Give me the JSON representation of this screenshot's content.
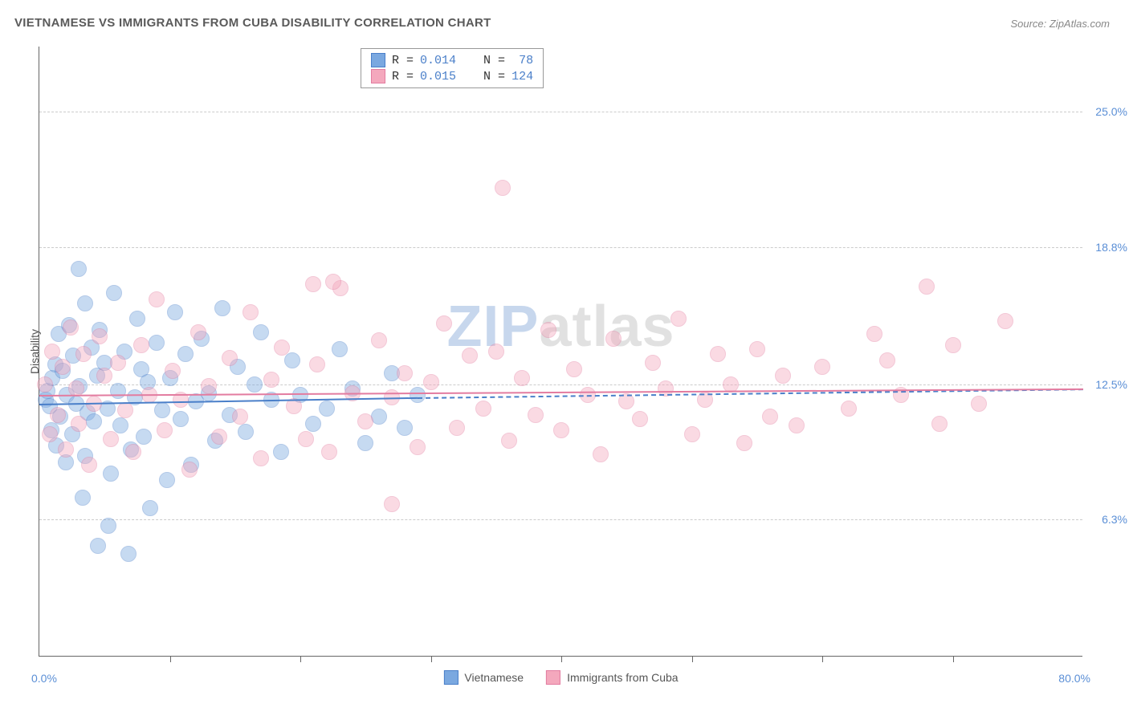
{
  "title": "VIETNAMESE VS IMMIGRANTS FROM CUBA DISABILITY CORRELATION CHART",
  "source": "Source: ZipAtlas.com",
  "watermark": {
    "part1": "ZIP",
    "part2": "atlas"
  },
  "chart": {
    "type": "scatter",
    "ylabel": "Disability",
    "xlim": [
      0,
      80
    ],
    "ylim": [
      0,
      28
    ],
    "xlim_labels": {
      "min": "0.0%",
      "max": "80.0%"
    },
    "xtick_positions": [
      10,
      20,
      30,
      40,
      50,
      60,
      70
    ],
    "yticks": [
      {
        "value": 6.3,
        "label": "6.3%"
      },
      {
        "value": 12.5,
        "label": "12.5%"
      },
      {
        "value": 18.8,
        "label": "18.8%"
      },
      {
        "value": 25.0,
        "label": "25.0%"
      }
    ],
    "background_color": "#ffffff",
    "grid_color": "#cccccc",
    "axis_color": "#666666",
    "tick_label_color": "#5b8fd6",
    "ylabel_color": "#555555",
    "marker_radius": 10,
    "marker_opacity": 0.42,
    "series": [
      {
        "key": "vietnamese",
        "label": "Vietnamese",
        "fill_color": "#7aa8e0",
        "stroke_color": "#4a7fc9",
        "R": "0.014",
        "N": "78",
        "trend": {
          "x0": 0,
          "y0": 11.6,
          "x1": 29,
          "y1": 11.9,
          "dashed_extend_to": 80,
          "y_extend": 12.3
        },
        "points": [
          [
            0.5,
            11.8
          ],
          [
            0.6,
            12.2
          ],
          [
            0.8,
            11.5
          ],
          [
            0.9,
            10.4
          ],
          [
            1.0,
            12.8
          ],
          [
            1.2,
            13.4
          ],
          [
            1.3,
            9.7
          ],
          [
            1.5,
            14.8
          ],
          [
            1.6,
            11.0
          ],
          [
            1.8,
            13.1
          ],
          [
            2.0,
            8.9
          ],
          [
            2.1,
            12.0
          ],
          [
            2.3,
            15.2
          ],
          [
            2.5,
            10.2
          ],
          [
            2.6,
            13.8
          ],
          [
            2.8,
            11.6
          ],
          [
            3.0,
            17.8
          ],
          [
            3.1,
            12.4
          ],
          [
            3.3,
            7.3
          ],
          [
            3.5,
            9.2
          ],
          [
            3.5,
            16.2
          ],
          [
            3.7,
            11.2
          ],
          [
            4.0,
            14.2
          ],
          [
            4.2,
            10.8
          ],
          [
            4.4,
            12.9
          ],
          [
            4.5,
            5.1
          ],
          [
            4.6,
            15.0
          ],
          [
            5.0,
            13.5
          ],
          [
            5.2,
            11.4
          ],
          [
            5.3,
            6.0
          ],
          [
            5.5,
            8.4
          ],
          [
            5.7,
            16.7
          ],
          [
            6.0,
            12.2
          ],
          [
            6.2,
            10.6
          ],
          [
            6.5,
            14.0
          ],
          [
            6.8,
            4.7
          ],
          [
            7.0,
            9.5
          ],
          [
            7.3,
            11.9
          ],
          [
            7.5,
            15.5
          ],
          [
            7.8,
            13.2
          ],
          [
            8.0,
            10.1
          ],
          [
            8.3,
            12.6
          ],
          [
            8.5,
            6.8
          ],
          [
            9.0,
            14.4
          ],
          [
            9.4,
            11.3
          ],
          [
            9.8,
            8.1
          ],
          [
            10.0,
            12.8
          ],
          [
            10.4,
            15.8
          ],
          [
            10.8,
            10.9
          ],
          [
            11.2,
            13.9
          ],
          [
            11.6,
            8.8
          ],
          [
            12.0,
            11.7
          ],
          [
            12.4,
            14.6
          ],
          [
            13.0,
            12.1
          ],
          [
            13.5,
            9.9
          ],
          [
            14.0,
            16.0
          ],
          [
            14.6,
            11.1
          ],
          [
            15.2,
            13.3
          ],
          [
            15.8,
            10.3
          ],
          [
            16.5,
            12.5
          ],
          [
            17.0,
            14.9
          ],
          [
            17.8,
            11.8
          ],
          [
            18.5,
            9.4
          ],
          [
            19.4,
            13.6
          ],
          [
            20.0,
            12.0
          ],
          [
            21.0,
            10.7
          ],
          [
            22.0,
            11.4
          ],
          [
            23.0,
            14.1
          ],
          [
            24.0,
            12.3
          ],
          [
            25.0,
            9.8
          ],
          [
            26.0,
            11.0
          ],
          [
            27.0,
            13.0
          ],
          [
            28.0,
            10.5
          ],
          [
            29.0,
            12.0
          ]
        ]
      },
      {
        "key": "cuba",
        "label": "Immigrants from Cuba",
        "fill_color": "#f4a8bd",
        "stroke_color": "#e37ca0",
        "R": "0.015",
        "N": "124",
        "trend": {
          "x0": 0,
          "y0": 12.0,
          "x1": 80,
          "y1": 12.3,
          "dashed_extend_to": null
        },
        "points": [
          [
            0.4,
            12.5
          ],
          [
            0.8,
            10.2
          ],
          [
            1.0,
            14.0
          ],
          [
            1.4,
            11.1
          ],
          [
            1.8,
            13.3
          ],
          [
            2.0,
            9.5
          ],
          [
            2.4,
            15.1
          ],
          [
            2.8,
            12.3
          ],
          [
            3.0,
            10.7
          ],
          [
            3.4,
            13.9
          ],
          [
            3.8,
            8.8
          ],
          [
            4.2,
            11.6
          ],
          [
            4.6,
            14.7
          ],
          [
            5.0,
            12.9
          ],
          [
            5.5,
            10.0
          ],
          [
            6.0,
            13.5
          ],
          [
            6.6,
            11.3
          ],
          [
            7.2,
            9.4
          ],
          [
            7.8,
            14.3
          ],
          [
            8.4,
            12.0
          ],
          [
            9.0,
            16.4
          ],
          [
            9.6,
            10.4
          ],
          [
            10.2,
            13.1
          ],
          [
            10.8,
            11.8
          ],
          [
            11.5,
            8.6
          ],
          [
            12.2,
            14.9
          ],
          [
            13.0,
            12.4
          ],
          [
            13.8,
            10.1
          ],
          [
            14.6,
            13.7
          ],
          [
            15.4,
            11.0
          ],
          [
            16.2,
            15.8
          ],
          [
            17.0,
            9.1
          ],
          [
            17.8,
            12.7
          ],
          [
            18.6,
            14.2
          ],
          [
            19.5,
            11.5
          ],
          [
            20.4,
            10.0
          ],
          [
            21.3,
            13.4
          ],
          [
            22.2,
            9.4
          ],
          [
            23.1,
            16.9
          ],
          [
            24.0,
            12.1
          ],
          [
            21.0,
            17.1
          ],
          [
            22.5,
            17.2
          ],
          [
            25.0,
            10.8
          ],
          [
            26.0,
            14.5
          ],
          [
            27.0,
            11.9
          ],
          [
            28.0,
            13.0
          ],
          [
            29.0,
            9.6
          ],
          [
            30.0,
            12.6
          ],
          [
            31.0,
            15.3
          ],
          [
            27.0,
            7.0
          ],
          [
            32.0,
            10.5
          ],
          [
            33.0,
            13.8
          ],
          [
            34.0,
            11.4
          ],
          [
            35.0,
            14.0
          ],
          [
            35.5,
            21.5
          ],
          [
            36.0,
            9.9
          ],
          [
            37.0,
            12.8
          ],
          [
            38.0,
            11.1
          ],
          [
            39.0,
            15.0
          ],
          [
            40.0,
            10.4
          ],
          [
            41.0,
            13.2
          ],
          [
            42.0,
            12.0
          ],
          [
            43.0,
            9.3
          ],
          [
            44.0,
            14.6
          ],
          [
            45.0,
            11.7
          ],
          [
            46.0,
            10.9
          ],
          [
            47.0,
            13.5
          ],
          [
            48.0,
            12.3
          ],
          [
            49.0,
            15.5
          ],
          [
            50.0,
            10.2
          ],
          [
            51.0,
            11.8
          ],
          [
            52.0,
            13.9
          ],
          [
            53.0,
            12.5
          ],
          [
            54.0,
            9.8
          ],
          [
            55.0,
            14.1
          ],
          [
            56.0,
            11.0
          ],
          [
            57.0,
            12.9
          ],
          [
            58.0,
            10.6
          ],
          [
            60.0,
            13.3
          ],
          [
            62.0,
            11.4
          ],
          [
            64.0,
            14.8
          ],
          [
            65.0,
            13.6
          ],
          [
            66.0,
            12.0
          ],
          [
            68.0,
            17.0
          ],
          [
            69.0,
            10.7
          ],
          [
            70.0,
            14.3
          ],
          [
            72.0,
            11.6
          ],
          [
            74.0,
            15.4
          ]
        ]
      }
    ],
    "stats_labels": {
      "R": "R =",
      "N": "N ="
    },
    "bottom_legend": true
  }
}
